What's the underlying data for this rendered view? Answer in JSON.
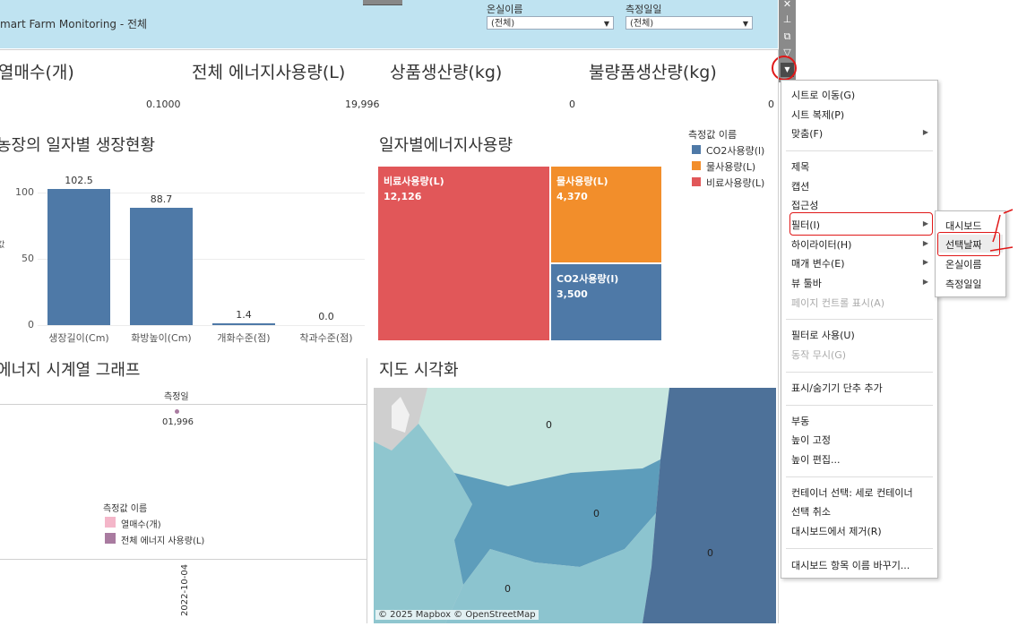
{
  "header": {
    "title": "mart Farm Monitoring - 전체",
    "filters": [
      {
        "label": "온실이름",
        "value": "(전체)"
      },
      {
        "label": "측정일일",
        "value": "(전체)"
      }
    ]
  },
  "kpis": [
    {
      "title": "열매수(개)",
      "value": "0.1000"
    },
    {
      "title": "전체 에너지사용량(L)",
      "value": "19,996"
    },
    {
      "title": "상품생산량(kg)",
      "value": "0"
    },
    {
      "title": "불량품생산량(kg)",
      "value": "0"
    }
  ],
  "sections": {
    "growth_title": "농장의 일자별 생장현황",
    "energy_title": "일자별에너지사용량",
    "timeseries_title": "에너지 시계열 그래프",
    "map_title": "지도 시각화"
  },
  "chart_data": [
    {
      "type": "bar",
      "categories": [
        "생장길이(Cm)",
        "화방높이(Cm)",
        "개화수준(점)",
        "착과수준(점)"
      ],
      "values": [
        102.5,
        88.7,
        1.4,
        0.0
      ],
      "value_labels": [
        "102.5",
        "88.7",
        "1.4",
        "0.0"
      ],
      "yticks": [
        "100",
        "50",
        "0"
      ],
      "ylabel": "값",
      "ylim": [
        0,
        110
      ],
      "color": "#4e79a7"
    },
    {
      "type": "treemap",
      "legend_title": "측정값 이름",
      "items": [
        {
          "name": "비료사용량(L)",
          "value": 12126,
          "value_label": "12,126",
          "color": "#e15759"
        },
        {
          "name": "물사용량(L)",
          "value": 4370,
          "value_label": "4,370",
          "color": "#f28e2b"
        },
        {
          "name": "CO2사용량(l)",
          "value": 3500,
          "value_label": "3,500",
          "color": "#4e79a7"
        }
      ],
      "legend": [
        {
          "name": "CO2사용량(l)",
          "color": "#4e79a7"
        },
        {
          "name": "물사용량(L)",
          "color": "#f28e2b"
        },
        {
          "name": "비료사용량(L)",
          "color": "#e15759"
        }
      ]
    },
    {
      "type": "line",
      "header": "측정일",
      "overlap_label": "01,996",
      "x_tick": "2022-10-04",
      "legend_title": "측정값 이름",
      "series": [
        {
          "name": "열매수(개)",
          "color": "#f4b6c9",
          "values": [
            0.1
          ]
        },
        {
          "name": "전체 에너지 사용량(L)",
          "color": "#a97ba0",
          "values": [
            19996
          ]
        }
      ]
    }
  ],
  "map": {
    "labels": [
      "0",
      "0",
      "0",
      "0"
    ],
    "credit": "© 2025 Mapbox  © OpenStreetMap"
  },
  "toolbar": {
    "icons": [
      "close-icon",
      "pin-icon",
      "popout-icon",
      "filter-icon",
      "more-options-icon"
    ],
    "close": "✕",
    "pin": "⊥",
    "popout": "⧉",
    "filter": "▽",
    "more": "▼"
  },
  "context_menu": {
    "items": [
      {
        "label": "시트로 이동(G)",
        "disabled": false
      },
      {
        "label": "시트 복제(P)",
        "disabled": false
      },
      {
        "label": "맞춤(F)",
        "disabled": false,
        "submenu": true
      },
      {
        "label": "제목",
        "disabled": false
      },
      {
        "label": "캡션",
        "disabled": false
      },
      {
        "label": "접근성",
        "disabled": false
      },
      {
        "label": "필터(I)",
        "disabled": false,
        "submenu": true
      },
      {
        "label": "하이라이터(H)",
        "disabled": false,
        "submenu": true
      },
      {
        "label": "매개 변수(E)",
        "disabled": false,
        "submenu": true
      },
      {
        "label": "뷰 툴바",
        "disabled": false,
        "submenu": true
      },
      {
        "label": "페이지 컨트롤 표시(A)",
        "disabled": true
      },
      {
        "label": "필터로 사용(U)",
        "disabled": false
      },
      {
        "label": "동작 무시(G)",
        "disabled": true
      },
      {
        "label": "표시/숨기기 단추 추가",
        "disabled": false
      },
      {
        "label": "부동",
        "disabled": false
      },
      {
        "label": "높이 고정",
        "disabled": false
      },
      {
        "label": "높이 편집...",
        "disabled": false
      },
      {
        "label": "컨테이너 선택: 세로 컨테이너",
        "disabled": false
      },
      {
        "label": "선택 취소",
        "disabled": false
      },
      {
        "label": "대시보드에서 제거(R)",
        "disabled": false
      },
      {
        "label": "대시보드 항목 이름 바꾸기...",
        "disabled": false
      }
    ],
    "filter_submenu": [
      "대시보드",
      "선택날짜",
      "온실이름",
      "측정일일"
    ]
  }
}
